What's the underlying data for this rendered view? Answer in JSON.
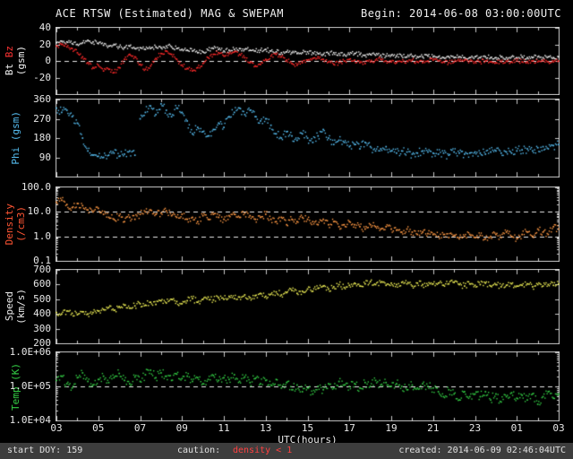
{
  "header": {
    "title": "ACE RTSW (Estimated) MAG & SWEPAM",
    "begin": "Begin: 2014-06-08 03:00:00UTC"
  },
  "footer": {
    "start_doy": "start DOY: 159",
    "caution_label": "caution:",
    "caution_value": "density < 1",
    "caution_color": "#ff4040",
    "created": "created: 2014-06-09 02:46:04UTC"
  },
  "chart_data": {
    "type": "scatter",
    "title": "ACE RTSW (Estimated) MAG & SWEPAM",
    "x": {
      "label": "UTC(hours)",
      "start_hour": 3,
      "step_hours": 0.25,
      "end_hour": 27,
      "tick_labels": [
        "03",
        "05",
        "07",
        "09",
        "11",
        "13",
        "15",
        "17",
        "19",
        "21",
        "23",
        "01",
        "03"
      ]
    },
    "panels": [
      {
        "name": "mag",
        "scale": "linear",
        "ylim": [
          -40,
          40
        ],
        "yticks": [
          {
            "v": 40,
            "label": "40"
          },
          {
            "v": 20,
            "label": "20"
          },
          {
            "v": 0,
            "label": "0"
          },
          {
            "v": -20,
            "label": "-20"
          },
          {
            "v": -40,
            "label": ""
          }
        ],
        "dashed_hlines": [
          0
        ],
        "ylabel_columns": [
          [
            {
              "text": "Bt ",
              "color": "#f0f0f0"
            },
            {
              "text": "Bz",
              "color": "#ff3333"
            }
          ],
          [
            {
              "text": "(gsm)",
              "color": "#f0f0f0"
            }
          ]
        ],
        "series": [
          {
            "name": "Bt",
            "color": "#f0f0f0",
            "values": [
              22,
              24,
              23,
              21,
              20,
              22,
              25,
              23,
              21,
              19,
              18,
              20,
              17,
              16,
              18,
              15,
              16,
              14,
              15,
              17,
              16,
              18,
              17,
              15,
              14,
              13,
              12,
              10,
              11,
              13,
              15,
              14,
              12,
              13,
              14,
              15,
              14,
              13,
              12,
              13,
              14,
              12,
              11,
              10,
              11,
              10,
              9,
              10,
              11,
              10,
              9,
              8,
              9,
              10,
              9,
              8,
              8,
              9,
              8,
              7,
              8,
              7,
              7,
              6,
              7,
              6,
              6,
              5,
              6,
              5,
              5,
              6,
              5,
              5,
              4,
              5,
              4,
              5,
              4,
              4,
              5,
              4,
              5,
              4,
              4,
              5,
              4,
              5,
              4,
              5,
              4,
              4,
              5,
              4,
              5,
              4,
              5
            ]
          },
          {
            "name": "Bz",
            "color": "#ff2a2a",
            "values": [
              18,
              20,
              17,
              15,
              10,
              5,
              -2,
              -8,
              -5,
              -12,
              -10,
              -14,
              -8,
              2,
              8,
              5,
              -4,
              -10,
              -6,
              3,
              9,
              12,
              8,
              2,
              -5,
              -9,
              -12,
              -8,
              -3,
              4,
              8,
              10,
              6,
              9,
              11,
              8,
              4,
              -2,
              -6,
              -4,
              2,
              6,
              8,
              5,
              1,
              -3,
              -5,
              -2,
              1,
              3,
              5,
              2,
              -1,
              -4,
              -2,
              0,
              2,
              1,
              -2,
              -3,
              -1,
              1,
              2,
              0,
              -1,
              -2,
              -1,
              0,
              1,
              -1,
              -2,
              0,
              1,
              0,
              -1,
              -2,
              -1,
              0,
              1,
              0,
              -1,
              -1,
              0,
              -1,
              -2,
              -1,
              0,
              -1,
              0,
              -1,
              -1,
              0,
              -1,
              0,
              -1,
              -1,
              0
            ]
          }
        ]
      },
      {
        "name": "phi",
        "scale": "linear",
        "ylim": [
          0,
          360
        ],
        "yticks": [
          {
            "v": 360,
            "label": "360"
          },
          {
            "v": 270,
            "label": "270"
          },
          {
            "v": 180,
            "label": "180"
          },
          {
            "v": 90,
            "label": "90"
          },
          {
            "v": 0,
            "label": ""
          }
        ],
        "dashed_hlines": [],
        "ylabel_columns": [
          [
            {
              "text": "Phi (gsm)",
              "color": "#55bbee"
            }
          ]
        ],
        "series": [
          {
            "name": "Phi",
            "color": "#55bbee",
            "values": [
              320,
              300,
              310,
              280,
              250,
              180,
              120,
              100,
              95,
              90,
              100,
              110,
              95,
              105,
              120,
              100,
              270,
              300,
              330,
              290,
              340,
              310,
              280,
              320,
              300,
              260,
              200,
              230,
              210,
              190,
              220,
              250,
              230,
              280,
              300,
              320,
              290,
              310,
              280,
              260,
              270,
              240,
              200,
              180,
              210,
              190,
              170,
              200,
              180,
              160,
              190,
              220,
              180,
              150,
              170,
              160,
              140,
              150,
              130,
              160,
              140,
              120,
              130,
              140,
              120,
              110,
              120,
              115,
              105,
              110,
              120,
              115,
              110,
              105,
              110,
              100,
              115,
              110,
              105,
              110,
              115,
              110,
              105,
              115,
              120,
              110,
              115,
              110,
              120,
              125,
              130,
              120,
              135,
              140,
              130,
              145,
              150
            ]
          }
        ]
      },
      {
        "name": "density",
        "scale": "log",
        "ylim": [
          0.1,
          100
        ],
        "yticks": [
          {
            "v": 100,
            "label": "100.0"
          },
          {
            "v": 10,
            "label": "10.0"
          },
          {
            "v": 1,
            "label": "1.0"
          },
          {
            "v": 0.1,
            "label": "0.1"
          }
        ],
        "dashed_hlines": [
          10,
          1
        ],
        "ylabel_columns": [
          [
            {
              "text": "Density",
              "color": "#ff5533"
            }
          ],
          [
            {
              "text": "(/cm3)",
              "color": "#ff5533"
            }
          ]
        ],
        "series": [
          {
            "name": "Density",
            "color": "#ff9944",
            "values": [
              25,
              30,
              20,
              15,
              22,
              18,
              12,
              10,
              14,
              8,
              6,
              5,
              7,
              4,
              6,
              5,
              8,
              10,
              12,
              8,
              9,
              11,
              7,
              6,
              8,
              5,
              6,
              4,
              7,
              5,
              8,
              6,
              5,
              7,
              8,
              6,
              9,
              7,
              5,
              6,
              8,
              5,
              4,
              6,
              3,
              5,
              4,
              6,
              5,
              4,
              3,
              5,
              3,
              4,
              2.5,
              3,
              4,
              3,
              2.5,
              2,
              3,
              2.5,
              2,
              2.5,
              2,
              1.8,
              1.5,
              2,
              1.5,
              1.2,
              1.5,
              1.3,
              1.2,
              1.0,
              1.2,
              0.9,
              1.1,
              0.8,
              1.0,
              1.2,
              0.9,
              1.1,
              0.8,
              1.0,
              1.2,
              0.9,
              1.5,
              1.0,
              0.8,
              1.2,
              1.5,
              1.0,
              2.0,
              1.5,
              1.2,
              2.5,
              2.0
            ]
          }
        ]
      },
      {
        "name": "speed",
        "scale": "linear",
        "ylim": [
          200,
          700
        ],
        "yticks": [
          {
            "v": 700,
            "label": "700"
          },
          {
            "v": 600,
            "label": "600"
          },
          {
            "v": 500,
            "label": "500"
          },
          {
            "v": 400,
            "label": "400"
          },
          {
            "v": 300,
            "label": "300"
          },
          {
            "v": 200,
            "label": "200"
          }
        ],
        "dashed_hlines": [],
        "ylabel_columns": [
          [
            {
              "text": "Speed",
              "color": "#e8e8e8"
            }
          ],
          [
            {
              "text": "(km/s)",
              "color": "#e8e8e8"
            }
          ]
        ],
        "series": [
          {
            "name": "Speed",
            "color": "#eded55",
            "values": [
              410,
              400,
              420,
              405,
              395,
              415,
              400,
              410,
              420,
              430,
              445,
              425,
              450,
              460,
              440,
              455,
              470,
              460,
              480,
              465,
              490,
              475,
              500,
              485,
              470,
              490,
              505,
              480,
              500,
              515,
              495,
              510,
              500,
              520,
              505,
              515,
              530,
              510,
              525,
              540,
              520,
              535,
              550,
              530,
              545,
              560,
              540,
              555,
              570,
              555,
              575,
              590,
              570,
              585,
              600,
              580,
              595,
              610,
              590,
              605,
              620,
              600,
              615,
              595,
              610,
              600,
              615,
              605,
              590,
              610,
              600,
              595,
              605,
              610,
              595,
              605,
              615,
              600,
              590,
              605,
              595,
              600,
              610,
              590,
              600,
              585,
              595,
              605,
              590,
              595,
              605,
              585,
              600,
              590,
              600,
              595,
              605
            ]
          }
        ]
      },
      {
        "name": "temp",
        "scale": "log",
        "ylim": [
          10000,
          1000000
        ],
        "yticks": [
          {
            "v": 1000000,
            "label": "1.0E+06"
          },
          {
            "v": 100000,
            "label": "1.0E+05"
          },
          {
            "v": 10000,
            "label": "1.0E+04"
          }
        ],
        "dashed_hlines": [
          100000
        ],
        "ylabel_columns": [
          [
            {
              "text": "Temp (K)",
              "color": "#33cc44"
            }
          ]
        ],
        "series": [
          {
            "name": "Temp",
            "color": "#33cc44",
            "values": [
              150000,
              200000,
              120000,
              90000,
              180000,
              250000,
              140000,
              110000,
              160000,
              200000,
              130000,
              180000,
              240000,
              150000,
              120000,
              190000,
              140000,
              220000,
              300000,
              180000,
              250000,
              200000,
              150000,
              230000,
              170000,
              200000,
              140000,
              180000,
              120000,
              160000,
              210000,
              150000,
              180000,
              160000,
              220000,
              140000,
              190000,
              130000,
              170000,
              120000,
              150000,
              110000,
              160000,
              90000,
              130000,
              80000,
              110000,
              70000,
              90000,
              60000,
              100000,
              80000,
              120000,
              90000,
              140000,
              110000,
              100000,
              120000,
              90000,
              130000,
              100000,
              150000,
              110000,
              130000,
              100000,
              120000,
              100000,
              80000,
              110000,
              90000,
              120000,
              100000,
              90000,
              70000,
              50000,
              80000,
              60000,
              40000,
              70000,
              50000,
              60000,
              50000,
              70000,
              40000,
              60000,
              35000,
              50000,
              65000,
              45000,
              55000,
              40000,
              60000,
              30000,
              50000,
              70000,
              45000,
              60000
            ]
          }
        ]
      }
    ]
  }
}
